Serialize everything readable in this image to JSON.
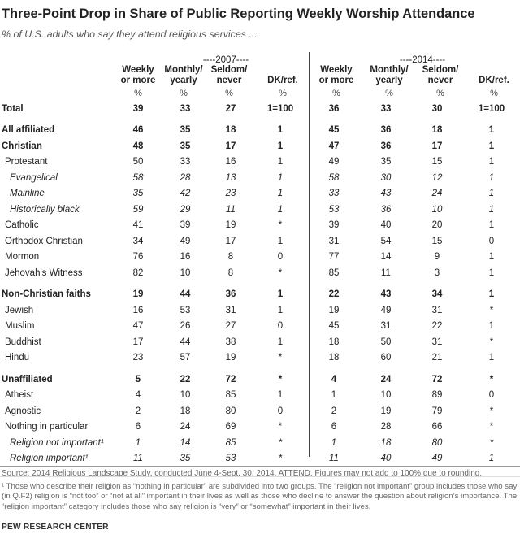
{
  "title": "Three-Point Drop in Share of Public Reporting Weekly Worship Attendance",
  "subtitle": "% of U.S. adults who say they attend religious services ...",
  "groups": [
    "----2007----",
    "----2014----"
  ],
  "columns": [
    {
      "line1": "Weekly",
      "line2": "or more"
    },
    {
      "line1": "Monthly/",
      "line2": "yearly"
    },
    {
      "line1": "Seldom/",
      "line2": "never"
    },
    {
      "line1": "",
      "line2": "DK/ref."
    }
  ],
  "percent_sign": "%",
  "rows": [
    {
      "label": "Total",
      "style": "bold",
      "y2007": [
        "39",
        "33",
        "27",
        "1=100"
      ],
      "y2014": [
        "36",
        "33",
        "30",
        "1=100"
      ]
    },
    {
      "label": "All affiliated",
      "style": "bold gap",
      "y2007": [
        "46",
        "35",
        "18",
        "1"
      ],
      "y2014": [
        "45",
        "36",
        "18",
        "1"
      ]
    },
    {
      "label": "Christian",
      "style": "bold",
      "y2007": [
        "48",
        "35",
        "17",
        "1"
      ],
      "y2014": [
        "47",
        "36",
        "17",
        "1"
      ]
    },
    {
      "label": "Protestant",
      "style": "indent",
      "y2007": [
        "50",
        "33",
        "16",
        "1"
      ],
      "y2014": [
        "49",
        "35",
        "15",
        "1"
      ]
    },
    {
      "label": "Evangelical",
      "style": "italic",
      "y2007": [
        "58",
        "28",
        "13",
        "1"
      ],
      "y2014": [
        "58",
        "30",
        "12",
        "1"
      ]
    },
    {
      "label": "Mainline",
      "style": "italic",
      "y2007": [
        "35",
        "42",
        "23",
        "1"
      ],
      "y2014": [
        "33",
        "43",
        "24",
        "1"
      ]
    },
    {
      "label": "Historically black",
      "style": "italic",
      "y2007": [
        "59",
        "29",
        "11",
        "1"
      ],
      "y2014": [
        "53",
        "36",
        "10",
        "1"
      ]
    },
    {
      "label": "Catholic",
      "style": "indent",
      "y2007": [
        "41",
        "39",
        "19",
        "*"
      ],
      "y2014": [
        "39",
        "40",
        "20",
        "1"
      ]
    },
    {
      "label": "Orthodox Christian",
      "style": "indent",
      "y2007": [
        "34",
        "49",
        "17",
        "1"
      ],
      "y2014": [
        "31",
        "54",
        "15",
        "0"
      ]
    },
    {
      "label": "Mormon",
      "style": "indent",
      "y2007": [
        "76",
        "16",
        "8",
        "0"
      ],
      "y2014": [
        "77",
        "14",
        "9",
        "1"
      ]
    },
    {
      "label": "Jehovah's Witness",
      "style": "indent",
      "y2007": [
        "82",
        "10",
        "8",
        "*"
      ],
      "y2014": [
        "85",
        "11",
        "3",
        "1"
      ]
    },
    {
      "label": "Non-Christian faiths",
      "style": "bold gap",
      "y2007": [
        "19",
        "44",
        "36",
        "1"
      ],
      "y2014": [
        "22",
        "43",
        "34",
        "1"
      ]
    },
    {
      "label": "Jewish",
      "style": "indent",
      "y2007": [
        "16",
        "53",
        "31",
        "1"
      ],
      "y2014": [
        "19",
        "49",
        "31",
        "*"
      ]
    },
    {
      "label": "Muslim",
      "style": "indent",
      "y2007": [
        "47",
        "26",
        "27",
        "0"
      ],
      "y2014": [
        "45",
        "31",
        "22",
        "1"
      ]
    },
    {
      "label": "Buddhist",
      "style": "indent",
      "y2007": [
        "17",
        "44",
        "38",
        "1"
      ],
      "y2014": [
        "18",
        "50",
        "31",
        "*"
      ]
    },
    {
      "label": "Hindu",
      "style": "indent",
      "y2007": [
        "23",
        "57",
        "19",
        "*"
      ],
      "y2014": [
        "18",
        "60",
        "21",
        "1"
      ]
    },
    {
      "label": "Unaffiliated",
      "style": "bold gap",
      "y2007": [
        "5",
        "22",
        "72",
        "*"
      ],
      "y2014": [
        "4",
        "24",
        "72",
        "*"
      ]
    },
    {
      "label": "Atheist",
      "style": "indent",
      "y2007": [
        "4",
        "10",
        "85",
        "1"
      ],
      "y2014": [
        "1",
        "10",
        "89",
        "0"
      ]
    },
    {
      "label": "Agnostic",
      "style": "indent",
      "y2007": [
        "2",
        "18",
        "80",
        "0"
      ],
      "y2014": [
        "2",
        "19",
        "79",
        "*"
      ]
    },
    {
      "label": "Nothing in particular",
      "style": "indent",
      "y2007": [
        "6",
        "24",
        "69",
        "*"
      ],
      "y2014": [
        "6",
        "28",
        "66",
        "*"
      ]
    },
    {
      "label": "Religion not important¹",
      "style": "italic",
      "y2007": [
        "1",
        "14",
        "85",
        "*"
      ],
      "y2014": [
        "1",
        "18",
        "80",
        "*"
      ]
    },
    {
      "label": "Religion important¹",
      "style": "italic",
      "y2007": [
        "11",
        "35",
        "53",
        "*"
      ],
      "y2014": [
        "11",
        "40",
        "49",
        "1"
      ]
    }
  ],
  "source": "Source: 2014 Religious Landscape Study, conducted June 4-Sept. 30, 2014. ATTEND. Figures may not add to 100% due to rounding.",
  "footnote": "¹ Those who describe their religion as “nothing in particular” are subdivided into two groups. The “religion not important” group includes those who say (in Q.F2) religion is “not too” or “not at all” important in their lives as well as those who decline to answer the question about religion’s importance. The “religion important” category includes those who say religion is “very” or “somewhat” important in their lives.",
  "brand": "PEW RESEARCH CENTER"
}
